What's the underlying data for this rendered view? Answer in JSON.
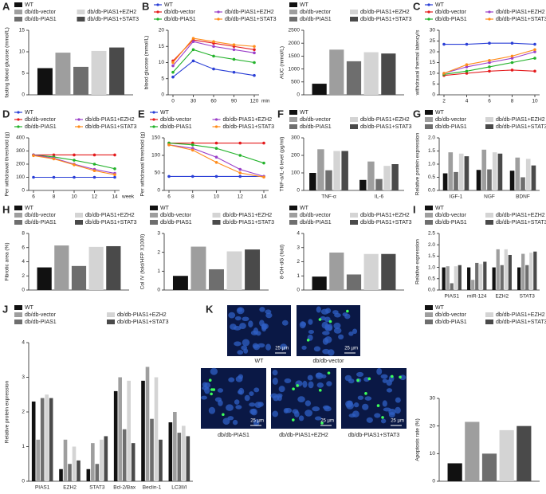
{
  "chart_data": [
    {
      "type": "bar",
      "panel": "A",
      "ylabel": "fasting blood glucose (mmol/L)",
      "categories": [
        null
      ],
      "ylim": [
        0,
        15
      ],
      "yticks": [
        0,
        5,
        10,
        15
      ],
      "series": [
        {
          "name": "WT",
          "color": "#111111",
          "values": [
            6.2
          ]
        },
        {
          "name": "db/db-vector",
          "color": "#9e9e9e",
          "values": [
            9.8
          ]
        },
        {
          "name": "db/db-PIAS1",
          "color": "#6e6e6e",
          "values": [
            6.5
          ]
        },
        {
          "name": "db/db-PIAS1+EZH2",
          "color": "#d4d4d4",
          "values": [
            10.2
          ]
        },
        {
          "name": "db/db-PIAS1+STAT3",
          "color": "#4a4a4a",
          "values": [
            11
          ]
        }
      ]
    },
    {
      "type": "line",
      "panel": "B",
      "ylabel": "blood glucose (mmol/L)",
      "xlabel": "min",
      "x": [
        0,
        30,
        60,
        90,
        120
      ],
      "xlim": [
        0,
        120
      ],
      "xticks": [
        0,
        30,
        60,
        90,
        120
      ],
      "ylim": [
        0,
        20
      ],
      "yticks": [
        0,
        5,
        10,
        15,
        20
      ],
      "series": [
        {
          "name": "WT",
          "color": "#2a3fd6",
          "values": [
            5.5,
            10.5,
            8,
            7,
            6
          ]
        },
        {
          "name": "db/db-vector",
          "color": "#e41a1c",
          "values": [
            10.5,
            17,
            16,
            15,
            14
          ]
        },
        {
          "name": "db/db-PIAS1",
          "color": "#22b22a",
          "values": [
            7,
            14,
            12,
            11,
            10
          ]
        },
        {
          "name": "db/db-PIAS1+EZH2",
          "color": "#9b3fc9",
          "values": [
            9,
            16.5,
            15,
            14,
            13
          ]
        },
        {
          "name": "db/db-PIAS1+STAT3",
          "color": "#ff8c1a",
          "values": [
            10,
            17.5,
            16.5,
            15.5,
            15
          ]
        }
      ]
    },
    {
      "type": "bar",
      "ylabel": "AUC (mmol/L)",
      "categories": [
        null
      ],
      "ylim": [
        0,
        2500
      ],
      "yticks": [
        0,
        500,
        1000,
        1500,
        2000,
        2500
      ],
      "series": [
        {
          "name": "WT",
          "color": "#111111",
          "values": [
            430
          ]
        },
        {
          "name": "db/db-vector",
          "color": "#9e9e9e",
          "values": [
            1750
          ]
        },
        {
          "name": "db/db-PIAS1",
          "color": "#6e6e6e",
          "values": [
            1300
          ]
        },
        {
          "name": "db/db-PIAS1+EZH2",
          "color": "#d4d4d4",
          "values": [
            1650
          ]
        },
        {
          "name": "db/db-PIAS1+STAT3",
          "color": "#4a4a4a",
          "values": [
            1600
          ]
        }
      ]
    },
    {
      "type": "line",
      "panel": "C",
      "ylabel": "withdrawal thermal latency/s",
      "x": [
        2,
        4,
        6,
        8,
        10
      ],
      "xlim": [
        2,
        10
      ],
      "xticks": [
        2,
        4,
        6,
        8,
        10
      ],
      "ylim": [
        0,
        30
      ],
      "yticks": [
        0,
        5,
        10,
        15,
        20,
        25,
        30
      ],
      "series": [
        {
          "name": "WT",
          "color": "#2a3fd6",
          "values": [
            23.5,
            23.5,
            24,
            24,
            23.5
          ]
        },
        {
          "name": "db/db-vector",
          "color": "#e41a1c",
          "values": [
            9,
            10,
            11,
            11.5,
            11
          ]
        },
        {
          "name": "db/db-PIAS1",
          "color": "#22b22a",
          "values": [
            9.5,
            11,
            13,
            15,
            17
          ]
        },
        {
          "name": "db/db-PIAS1+EZH2",
          "color": "#9b3fc9",
          "values": [
            10,
            13,
            15,
            17,
            20
          ]
        },
        {
          "name": "db/db-PIAS1+STAT3",
          "color": "#ff8c1a",
          "values": [
            10,
            14,
            16,
            18,
            21
          ]
        }
      ]
    },
    {
      "type": "line",
      "panel": "D",
      "ylabel": "Per withdrawal threshold (g)",
      "xlabel": "week",
      "x": [
        6,
        8,
        10,
        12,
        14
      ],
      "xlim": [
        6,
        14
      ],
      "xticks": [
        6,
        8,
        10,
        12,
        14
      ],
      "ylim": [
        0,
        400
      ],
      "yticks": [
        0,
        100,
        200,
        300,
        400
      ],
      "series": [
        {
          "name": "WT",
          "color": "#2a3fd6",
          "values": [
            100,
            100,
            100,
            100,
            100
          ]
        },
        {
          "name": "db/db-vector",
          "color": "#e41a1c",
          "values": [
            270,
            270,
            270,
            270,
            270
          ]
        },
        {
          "name": "db/db-PIAS1",
          "color": "#22b22a",
          "values": [
            270,
            255,
            230,
            200,
            165
          ]
        },
        {
          "name": "db/db-PIAS1+EZH2",
          "color": "#9b3fc9",
          "values": [
            270,
            245,
            200,
            160,
            130
          ]
        },
        {
          "name": "db/db-PIAS1+STAT3",
          "color": "#ff8c1a",
          "values": [
            265,
            240,
            195,
            150,
            120
          ]
        }
      ]
    },
    {
      "type": "line",
      "panel": "E",
      "ylabel": "Per withdrawal threshold (g)",
      "x": [
        6,
        8,
        10,
        12,
        14
      ],
      "xlim": [
        6,
        14
      ],
      "xticks": [
        6,
        8,
        10,
        12,
        14
      ],
      "ylim": [
        0,
        150
      ],
      "yticks": [
        0,
        50,
        100,
        150
      ],
      "series": [
        {
          "name": "WT",
          "color": "#2a3fd6",
          "values": [
            40,
            40,
            40,
            40,
            40
          ]
        },
        {
          "name": "db/db-vector",
          "color": "#e41a1c",
          "values": [
            135,
            135,
            135,
            135,
            135
          ]
        },
        {
          "name": "db/db-PIAS1",
          "color": "#22b22a",
          "values": [
            135,
            130,
            120,
            100,
            78
          ]
        },
        {
          "name": "db/db-PIAS1+EZH2",
          "color": "#9b3fc9",
          "values": [
            130,
            120,
            95,
            60,
            40
          ]
        },
        {
          "name": "db/db-PIAS1+STAT3",
          "color": "#ff8c1a",
          "values": [
            130,
            115,
            80,
            50,
            38
          ]
        }
      ]
    },
    {
      "type": "bar",
      "panel": "F",
      "ylabel": "TNF-α/IL-6 level (pg/ml)",
      "categories": [
        "TNF-α",
        "IL-6"
      ],
      "ylim": [
        0,
        300
      ],
      "yticks": [
        0,
        100,
        200,
        300
      ],
      "series": [
        {
          "name": "WT",
          "color": "#111111",
          "values": [
            100,
            60
          ]
        },
        {
          "name": "db/db-vector",
          "color": "#9e9e9e",
          "values": [
            235,
            165
          ]
        },
        {
          "name": "db/db-PIAS1",
          "color": "#6e6e6e",
          "values": [
            115,
            65
          ]
        },
        {
          "name": "db/db-PIAS1+EZH2",
          "color": "#d4d4d4",
          "values": [
            225,
            140
          ]
        },
        {
          "name": "db/db-PIAS1+STAT3",
          "color": "#4a4a4a",
          "values": [
            225,
            150
          ]
        }
      ]
    },
    {
      "type": "bar",
      "panel": "G",
      "ylabel": "Relative protein expression",
      "categories": [
        "IGF-1",
        "NGF",
        "BDNF"
      ],
      "ylim": [
        0,
        2
      ],
      "yticks": [
        {
          "value": 0,
          "label": "0.0"
        },
        0.5,
        {
          "value": 1,
          "label": "1.0"
        },
        1.5,
        {
          "value": 2,
          "label": "2.0"
        }
      ],
      "series": [
        {
          "name": "WT",
          "color": "#111111",
          "values": [
            0.65,
            0.78,
            0.75
          ]
        },
        {
          "name": "db/db-vector",
          "color": "#9e9e9e",
          "values": [
            1.45,
            1.55,
            1.25
          ]
        },
        {
          "name": "db/db-PIAS1",
          "color": "#6e6e6e",
          "values": [
            0.7,
            0.8,
            0.5
          ]
        },
        {
          "name": "db/db-PIAS1+EZH2",
          "color": "#d4d4d4",
          "values": [
            1.4,
            1.45,
            1.2
          ]
        },
        {
          "name": "db/db-PIAS1+STAT3",
          "color": "#4a4a4a",
          "values": [
            1.3,
            1.4,
            0.95
          ]
        }
      ]
    },
    {
      "type": "bar",
      "panel": "H",
      "ylabel": "Fibrotic area (%)",
      "categories": [
        null
      ],
      "ylim": [
        0,
        8
      ],
      "yticks": [
        0,
        2,
        4,
        6,
        8
      ],
      "series": [
        {
          "name": "WT",
          "color": "#111111",
          "values": [
            3.2
          ]
        },
        {
          "name": "db/db-vector",
          "color": "#9e9e9e",
          "values": [
            6.3
          ]
        },
        {
          "name": "db/db-PIAS1",
          "color": "#6e6e6e",
          "values": [
            3.4
          ]
        },
        {
          "name": "db/db-PIAS1+EZH2",
          "color": "#d4d4d4",
          "values": [
            6.1
          ]
        },
        {
          "name": "db/db-PIAS1+STAT3",
          "color": "#4a4a4a",
          "values": [
            6.2
          ]
        }
      ]
    },
    {
      "type": "bar",
      "ylabel": "Col IV (fold/HFP X1000)",
      "categories": [
        null
      ],
      "ylim": [
        0,
        3
      ],
      "yticks": [
        0,
        1,
        2,
        3
      ],
      "series": [
        {
          "name": "WT",
          "color": "#111111",
          "values": [
            0.75
          ]
        },
        {
          "name": "db/db-vector",
          "color": "#9e9e9e",
          "values": [
            2.3
          ]
        },
        {
          "name": "db/db-PIAS1",
          "color": "#6e6e6e",
          "values": [
            1.1
          ]
        },
        {
          "name": "db/db-PIAS1+EZH2",
          "color": "#d4d4d4",
          "values": [
            2.05
          ]
        },
        {
          "name": "db/db-PIAS1+STAT3",
          "color": "#4a4a4a",
          "values": [
            2.15
          ]
        }
      ]
    },
    {
      "type": "bar",
      "ylabel": "8-OH-dG (fold)",
      "categories": [
        null
      ],
      "ylim": [
        0,
        4
      ],
      "yticks": [
        0,
        1,
        2,
        3,
        4
      ],
      "series": [
        {
          "name": "WT",
          "color": "#111111",
          "values": [
            0.95
          ]
        },
        {
          "name": "db/db-vector",
          "color": "#9e9e9e",
          "values": [
            2.65
          ]
        },
        {
          "name": "db/db-PIAS1",
          "color": "#6e6e6e",
          "values": [
            1.1
          ]
        },
        {
          "name": "db/db-PIAS1+EZH2",
          "color": "#d4d4d4",
          "values": [
            2.55
          ]
        },
        {
          "name": "db/db-PIAS1+STAT3",
          "color": "#4a4a4a",
          "values": [
            2.55
          ]
        }
      ]
    },
    {
      "type": "bar",
      "panel": "I",
      "ylabel": "Relative expression",
      "categories": [
        "PIAS1",
        "miR-124",
        "EZH2",
        "STAT3"
      ],
      "ylim": [
        0,
        2.5
      ],
      "yticks": [
        {
          "value": 0,
          "label": "0.0"
        },
        0.5,
        {
          "value": 1,
          "label": "1.0"
        },
        1.5,
        {
          "value": 2,
          "label": "2.0"
        },
        2.5
      ],
      "series": [
        {
          "name": "WT",
          "color": "#111111",
          "values": [
            1.0,
            1.0,
            1.0,
            1.0
          ]
        },
        {
          "name": "db/db-vector",
          "color": "#9e9e9e",
          "values": [
            1.05,
            0.45,
            1.8,
            1.6
          ]
        },
        {
          "name": "db/db-PIAS1",
          "color": "#6e6e6e",
          "values": [
            0.3,
            1.2,
            1.1,
            1.1
          ]
        },
        {
          "name": "db/db-PIAS1+EZH2",
          "color": "#d4d4d4",
          "values": [
            1.05,
            1.15,
            1.8,
            1.65
          ]
        },
        {
          "name": "db/db-PIAS1+STAT3",
          "color": "#4a4a4a",
          "values": [
            1.1,
            1.25,
            1.55,
            1.7
          ]
        }
      ]
    },
    {
      "type": "bar",
      "panel": "J",
      "ylabel": "Relative protein expression",
      "categories": [
        "PIAS1",
        "EZH2",
        "STAT3",
        "Bcl-2/Bax",
        "Beclin-1",
        "LC3II/I"
      ],
      "ylim": [
        0,
        4
      ],
      "yticks": [
        0,
        1,
        2,
        3,
        4
      ],
      "series": [
        {
          "name": "WT",
          "color": "#111111",
          "values": [
            2.3,
            0.35,
            0.35,
            2.6,
            2.9,
            1.7
          ]
        },
        {
          "name": "db/db-vector",
          "color": "#9e9e9e",
          "values": [
            1.2,
            1.2,
            1.1,
            3.0,
            3.3,
            2.0
          ]
        },
        {
          "name": "db/db-PIAS1",
          "color": "#6e6e6e",
          "values": [
            2.4,
            0.5,
            0.5,
            1.5,
            1.8,
            1.4
          ]
        },
        {
          "name": "db/db-PIAS1+EZH2",
          "color": "#d4d4d4",
          "values": [
            2.5,
            1.0,
            1.2,
            2.9,
            3.0,
            1.6
          ]
        },
        {
          "name": "db/db-PIAS1+STAT3",
          "color": "#4a4a4a",
          "values": [
            2.4,
            0.6,
            1.3,
            1.1,
            1.2,
            1.3
          ]
        }
      ]
    },
    {
      "type": "bar",
      "ylabel": "Apoptosis rate (%)",
      "categories": [
        null
      ],
      "ylim": [
        0,
        30
      ],
      "yticks": [
        0,
        10,
        20,
        30
      ],
      "series": [
        {
          "name": "WT",
          "color": "#111111",
          "values": [
            6.5
          ]
        },
        {
          "name": "db/db-vector",
          "color": "#9e9e9e",
          "values": [
            21.5
          ]
        },
        {
          "name": "db/db-PIAS1",
          "color": "#6e6e6e",
          "values": [
            10
          ]
        },
        {
          "name": "db/db-PIAS1+EZH2",
          "color": "#d4d4d4",
          "values": [
            18.5
          ]
        },
        {
          "name": "db/db-PIAS1+STAT3",
          "color": "#4a4a4a",
          "values": [
            20
          ]
        }
      ]
    }
  ],
  "images": {
    "panel": "K",
    "labels": [
      "WT",
      "db/db-vector",
      "db/db-PIAS1",
      "db/db-PIAS1+EZH2",
      "db/db-PIAS1+STAT3"
    ],
    "scale": "25 µm"
  }
}
